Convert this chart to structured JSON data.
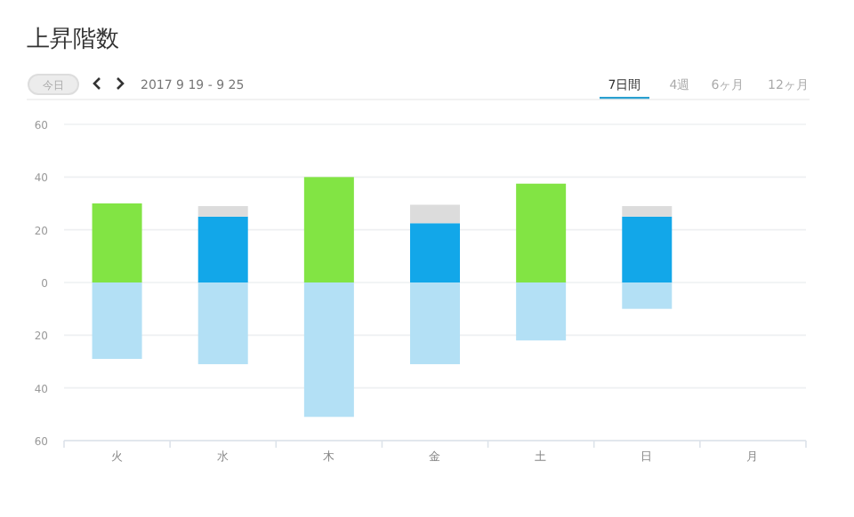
{
  "chart_data": {
    "type": "bar",
    "title": "上昇階数",
    "subtitle": "2017 9 19 - 9 25",
    "annotations": [
      "今日",
      "7日間",
      "4週",
      "6ヶ月",
      "12ヶ月"
    ],
    "categories": [
      "火",
      "水",
      "木",
      "金",
      "土",
      "日",
      "月"
    ],
    "stacked": true,
    "series": [
      {
        "color": "#82e444",
        "values": [
          30,
          null,
          40,
          null,
          37.5,
          null,
          null
        ]
      },
      {
        "color": "#12a7e9",
        "values": [
          null,
          25,
          null,
          22.5,
          null,
          25,
          null
        ]
      },
      {
        "color": "#dcdcdc",
        "values": [
          null,
          4,
          null,
          7,
          null,
          4,
          null
        ]
      },
      {
        "color": "#b3e0f5",
        "values": [
          -29,
          -31,
          -51,
          -31,
          -22,
          -10,
          null
        ]
      }
    ],
    "ylim": [
      -60,
      60
    ],
    "yticks": [
      {
        "value": -60,
        "label": "60"
      },
      {
        "value": -40,
        "label": "40"
      },
      {
        "value": -20,
        "label": "20"
      },
      0,
      20,
      40,
      60
    ],
    "grid": "y"
  }
}
